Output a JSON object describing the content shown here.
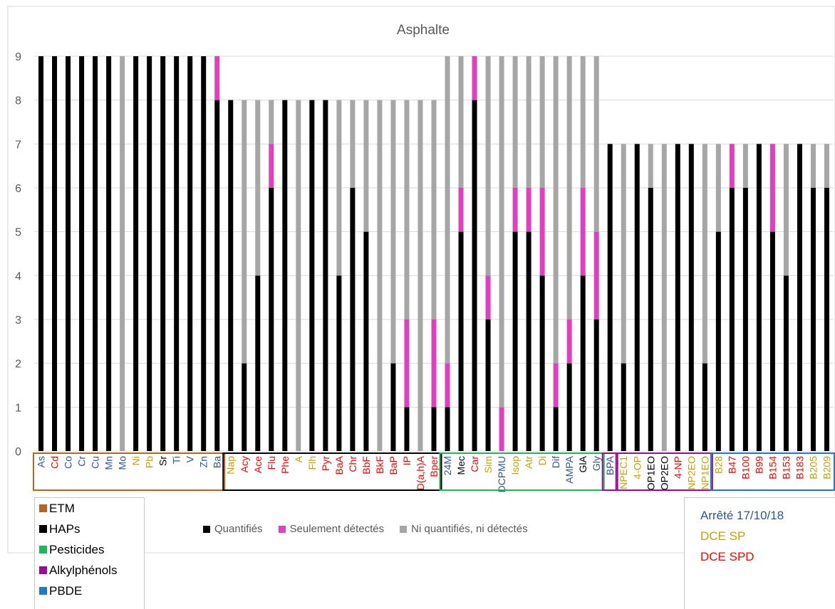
{
  "chart_data": {
    "type": "bar",
    "stacked": true,
    "title": "Asphalte",
    "ylim": [
      0,
      9
    ],
    "yticks": [
      0,
      1,
      2,
      3,
      4,
      5,
      6,
      7,
      8,
      9
    ],
    "grid": true,
    "legend_position": "bottom",
    "categories": [
      "As",
      "Cd",
      "Co",
      "Cr",
      "Cu",
      "Mn",
      "Mo",
      "Ni",
      "Pb",
      "Sr",
      "Ti",
      "V",
      "Zn",
      "Ba",
      "Nap",
      "Acy",
      "Ace",
      "Flu",
      "Phe",
      "A",
      "Flh",
      "Pyr",
      "BaA",
      "Chr",
      "BbF",
      "BkF",
      "BaP",
      "IP",
      "D(a,h)A",
      "Bper",
      "24M",
      "Mec",
      "Car",
      "Sim",
      "DCPMU",
      "Isop",
      "Atr",
      "Di",
      "Dif",
      "AMPA",
      "GlA",
      "Gly",
      "BPA",
      "NPEC1",
      "4-OP",
      "OP1EO",
      "OP2EO",
      "4-NP",
      "NP2EO",
      "NP1EO",
      "B28",
      "B47",
      "B100",
      "B99",
      "B154",
      "B153",
      "B183",
      "B205",
      "B209"
    ],
    "category_colors": [
      "#2e5597",
      "#ff0000",
      "#2e5597",
      "#2e5597",
      "#2e5597",
      "#2e5597",
      "#2e5597",
      "#c9a100",
      "#c9a100",
      "#000000",
      "#2e5597",
      "#2e5597",
      "#2e5597",
      "#2e5597",
      "#c9a100",
      "#ff0000",
      "#ff0000",
      "#ff0000",
      "#ff0000",
      "#c9a100",
      "#c9a100",
      "#ff0000",
      "#ff0000",
      "#ff0000",
      "#ff0000",
      "#ff0000",
      "#ff0000",
      "#ff0000",
      "#ff0000",
      "#ff0000",
      "#2e5597",
      "#000000",
      "#ff0000",
      "#c9a100",
      "#2e5597",
      "#c9a100",
      "#c9a100",
      "#c9a100",
      "#2e5597",
      "#2e5597",
      "#000000",
      "#2e5597",
      "#2e5597",
      "#c9a100",
      "#c9a100",
      "#000000",
      "#000000",
      "#ff0000",
      "#c9a100",
      "#c9a100",
      "#c9a100",
      "#ff0000",
      "#ff0000",
      "#ff0000",
      "#ff0000",
      "#ff0000",
      "#ff0000",
      "#c9a100",
      "#c9a100"
    ],
    "series": [
      {
        "name": "Quantifiés",
        "color": "#000000",
        "values": [
          9,
          9,
          9,
          9,
          9,
          9,
          0,
          9,
          9,
          9,
          9,
          9,
          9,
          8,
          8,
          2,
          4,
          6,
          8,
          0,
          8,
          8,
          4,
          6,
          5,
          0,
          2,
          1,
          0,
          1,
          1,
          5,
          8,
          3,
          0,
          5,
          5,
          4,
          1,
          2,
          4,
          3,
          7,
          2,
          7,
          6,
          0,
          7,
          7,
          2,
          5,
          6,
          6,
          7,
          5,
          4,
          7,
          6,
          6
        ]
      },
      {
        "name": "Seulement détectés",
        "color": "#e040c0",
        "values": [
          0,
          0,
          0,
          0,
          0,
          0,
          0,
          0,
          0,
          0,
          0,
          0,
          0,
          1,
          0,
          0,
          0,
          1,
          0,
          0,
          0,
          0,
          0,
          0,
          0,
          0,
          0,
          2,
          0,
          2,
          1,
          1,
          1,
          1,
          1,
          1,
          1,
          2,
          1,
          1,
          2,
          2,
          0,
          0,
          0,
          0,
          0,
          0,
          0,
          0,
          0,
          1,
          0,
          0,
          2,
          0,
          0,
          0,
          0
        ]
      },
      {
        "name": "Ni quantifiés, ni détectés",
        "color": "#a6a6a6",
        "values": [
          0,
          0,
          0,
          0,
          0,
          0,
          9,
          0,
          0,
          0,
          0,
          0,
          0,
          0,
          0,
          6,
          4,
          1,
          0,
          8,
          0,
          0,
          4,
          2,
          3,
          8,
          6,
          5,
          8,
          5,
          7,
          3,
          0,
          5,
          8,
          3,
          3,
          3,
          7,
          6,
          3,
          4,
          0,
          5,
          0,
          1,
          7,
          0,
          0,
          5,
          2,
          0,
          1,
          0,
          0,
          3,
          0,
          1,
          1
        ]
      }
    ],
    "groups": [
      {
        "name": "ETM",
        "color": "#b5651d",
        "first": "As",
        "last": "Ba"
      },
      {
        "name": "HAPs",
        "color": "#000000",
        "first": "Nap",
        "last": "Bper"
      },
      {
        "name": "Pesticides",
        "color": "#1db954",
        "first": "24M",
        "last": "Gly"
      },
      {
        "name": "Alkylphénols",
        "color": "#9b0a9b",
        "first": "BPA",
        "last": "BPA"
      },
      {
        "name": "Alkylphénols",
        "color": "#9b0a9b",
        "first": "NPEC1",
        "last": "NP1EO"
      },
      {
        "name": "PBDE",
        "color": "#1f78c8",
        "first": "B28",
        "last": "B209"
      }
    ]
  },
  "family_legend": [
    {
      "label": "ETM",
      "color": "#b5651d"
    },
    {
      "label": "HAPs",
      "color": "#000000"
    },
    {
      "label": "Pesticides",
      "color": "#1db954"
    },
    {
      "label": "Alkylphénols",
      "color": "#9b0a9b"
    },
    {
      "label": "PBDE",
      "color": "#1f78c8"
    }
  ],
  "source_legend": [
    {
      "label": "Arrêté 17/10/18",
      "color": "#2e5597"
    },
    {
      "label": "DCE SP",
      "color": "#c9a100"
    },
    {
      "label": "DCE SPD",
      "color": "#ff0000"
    }
  ]
}
